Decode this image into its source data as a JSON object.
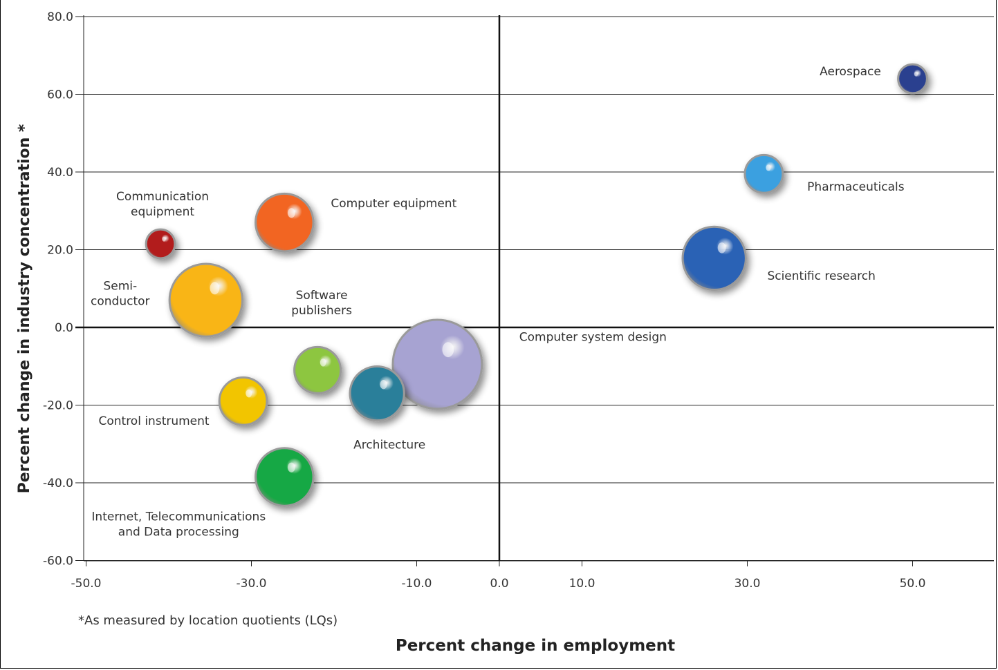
{
  "chart_data": {
    "type": "bubble",
    "xlabel": "Percent change in employment",
    "ylabel": "Percent change in industry concentration *",
    "footnote": "*As measured by location quotients (LQs)",
    "x_ticks": [
      "-50.0",
      "-30.0",
      "-10.0",
      "0.0",
      "10.0",
      "30.0",
      "50.0"
    ],
    "y_ticks": [
      "80.0",
      "60.0",
      "40.0",
      "20.0",
      "0.0",
      "-20.0",
      "-40.0",
      "-60.0"
    ],
    "grid": "horizontal",
    "series": [
      {
        "name": "Aerospace",
        "label_lines": [
          "Aerospace"
        ],
        "x": 50.0,
        "y": 64.0,
        "size": 4.8,
        "color": "#2a3f8f"
      },
      {
        "name": "Pharmaceuticals",
        "label_lines": [
          "Pharmaceuticals"
        ],
        "x": 32.0,
        "y": 39.5,
        "size": 6.3,
        "color": "#3aa0e0"
      },
      {
        "name": "Scientific research",
        "label_lines": [
          "Scientific research"
        ],
        "x": 26.0,
        "y": 17.8,
        "size": 10.5,
        "color": "#2a62b5"
      },
      {
        "name": "Computer system design",
        "label_lines": [
          "Computer system design"
        ],
        "x": -7.5,
        "y": -9.5,
        "size": 14.8,
        "color": "#a7a3d2"
      },
      {
        "name": "Architecture",
        "label_lines": [
          "Architecture"
        ],
        "x": -14.8,
        "y": -17.0,
        "size": 9.0,
        "color": "#2b7f9a"
      },
      {
        "name": "Software publishers",
        "label_lines": [
          "Software",
          "publishers"
        ],
        "x": -22.0,
        "y": -11.0,
        "size": 7.7,
        "color": "#8dc63f"
      },
      {
        "name": "Computer equipment",
        "label_lines": [
          "Computer equipment"
        ],
        "x": -26.0,
        "y": 27.0,
        "size": 9.6,
        "color": "#f26522"
      },
      {
        "name": "Communication equipment",
        "label_lines": [
          "Communication",
          "equipment"
        ],
        "x": -41.0,
        "y": 21.5,
        "size": 4.8,
        "color": "#b21e1e"
      },
      {
        "name": "Semi-conductor",
        "label_lines": [
          "Semi-",
          "conductor"
        ],
        "x": -35.5,
        "y": 7.0,
        "size": 12.1,
        "color": "#f9b517"
      },
      {
        "name": "Control instrument",
        "label_lines": [
          "Control instrument"
        ],
        "x": -31.0,
        "y": -19.0,
        "size": 7.9,
        "color": "#f2c500"
      },
      {
        "name": "Internet, Telecommunications and Data processing",
        "label_lines": [
          "Internet, Telecommunications",
          "and Data processing"
        ],
        "x": -26.0,
        "y": -38.5,
        "size": 9.6,
        "color": "#19a844"
      }
    ]
  }
}
